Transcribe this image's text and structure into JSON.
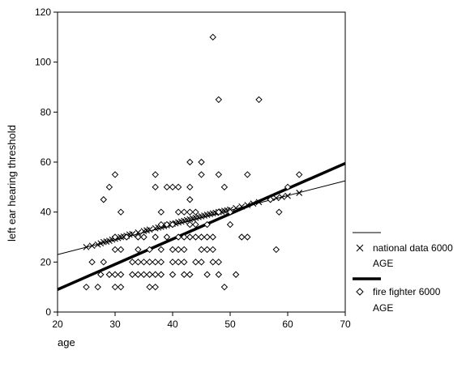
{
  "chart_data": {
    "type": "scatter",
    "xlabel": "age",
    "ylabel": "left ear hearing threshold",
    "xlim": [
      20,
      70
    ],
    "ylim": [
      0,
      120
    ],
    "x_ticks": [
      "20",
      "30",
      "40",
      "50",
      "60",
      "70"
    ],
    "y_ticks": [
      "0",
      "20",
      "40",
      "60",
      "80",
      "100",
      "120"
    ],
    "legend_position": "right",
    "series": [
      {
        "name": "national data 6000 AGE",
        "legend_line1": "national data 6000",
        "legend_line2": "AGE",
        "marker": "x",
        "line_weight": "thin",
        "fit_line": {
          "x1": 20,
          "y1": 23,
          "x2": 70,
          "y2": 52.5
        },
        "points": [
          [
            25,
            26
          ],
          [
            26,
            26.5
          ],
          [
            27,
            27
          ],
          [
            27.5,
            27.5
          ],
          [
            28,
            28
          ],
          [
            28.5,
            28.2
          ],
          [
            29,
            28.5
          ],
          [
            29.5,
            29
          ],
          [
            30,
            29.3
          ],
          [
            30.5,
            29.6
          ],
          [
            31,
            30
          ],
          [
            31.5,
            30.2
          ],
          [
            32,
            30.5
          ],
          [
            32.5,
            31
          ],
          [
            33,
            31.2
          ],
          [
            34,
            31.8
          ],
          [
            35,
            32.4
          ],
          [
            35.5,
            32.7
          ],
          [
            36,
            33
          ],
          [
            37,
            33.5
          ],
          [
            37.5,
            33.8
          ],
          [
            38,
            34.1
          ],
          [
            38.5,
            34.4
          ],
          [
            39,
            34.7
          ],
          [
            39.5,
            35
          ],
          [
            40,
            35.3
          ],
          [
            40.5,
            35.5
          ],
          [
            41,
            35.9
          ],
          [
            41.5,
            36.2
          ],
          [
            42,
            36.5
          ],
          [
            42.5,
            36.8
          ],
          [
            43,
            37.1
          ],
          [
            43.5,
            37.4
          ],
          [
            44,
            37.7
          ],
          [
            44.5,
            38
          ],
          [
            45,
            38.3
          ],
          [
            45.5,
            38.6
          ],
          [
            46,
            38.9
          ],
          [
            46.5,
            39.2
          ],
          [
            47,
            39.5
          ],
          [
            47.5,
            39.7
          ],
          [
            48,
            40
          ],
          [
            48.5,
            40.2
          ],
          [
            49,
            40.5
          ],
          [
            49.5,
            40.7
          ],
          [
            50,
            41
          ],
          [
            51,
            41.6
          ],
          [
            52,
            42.2
          ],
          [
            53,
            42.8
          ],
          [
            54,
            43.4
          ],
          [
            55,
            44
          ],
          [
            58,
            45.6
          ],
          [
            59,
            46
          ],
          [
            60,
            46.5
          ],
          [
            62,
            47.7
          ]
        ]
      },
      {
        "name": "fire fighter 6000 AGE",
        "legend_line1": "fire fighter 6000",
        "legend_line2": "AGE",
        "marker": "diamond",
        "line_weight": "thick",
        "fit_line": {
          "x1": 20,
          "y1": 9,
          "x2": 70,
          "y2": 59.5
        },
        "points": [
          [
            25,
            10
          ],
          [
            26,
            20
          ],
          [
            27,
            10
          ],
          [
            27.5,
            15
          ],
          [
            28,
            45
          ],
          [
            28,
            20
          ],
          [
            29,
            50
          ],
          [
            29,
            15
          ],
          [
            30,
            55
          ],
          [
            30,
            30
          ],
          [
            30,
            25
          ],
          [
            30,
            15
          ],
          [
            30,
            10
          ],
          [
            31,
            40
          ],
          [
            31,
            25
          ],
          [
            31,
            15
          ],
          [
            31,
            10
          ],
          [
            32,
            30
          ],
          [
            33,
            20
          ],
          [
            33,
            15
          ],
          [
            34,
            30
          ],
          [
            34,
            25
          ],
          [
            34,
            20
          ],
          [
            34,
            15
          ],
          [
            35,
            30
          ],
          [
            35,
            20
          ],
          [
            35,
            15
          ],
          [
            36,
            25
          ],
          [
            36,
            20
          ],
          [
            36,
            15
          ],
          [
            36,
            10
          ],
          [
            37,
            55
          ],
          [
            37,
            50
          ],
          [
            37,
            30
          ],
          [
            37,
            20
          ],
          [
            37,
            15
          ],
          [
            37,
            10
          ],
          [
            38,
            40
          ],
          [
            38,
            35
          ],
          [
            38,
            25
          ],
          [
            38,
            20
          ],
          [
            38,
            15
          ],
          [
            39,
            50
          ],
          [
            39,
            35
          ],
          [
            39,
            30
          ],
          [
            40,
            50
          ],
          [
            40,
            35
          ],
          [
            40,
            25
          ],
          [
            40,
            20
          ],
          [
            40,
            15
          ],
          [
            41,
            50
          ],
          [
            41,
            40
          ],
          [
            41,
            30
          ],
          [
            41,
            25
          ],
          [
            41,
            20
          ],
          [
            42,
            40
          ],
          [
            42,
            30
          ],
          [
            42,
            25
          ],
          [
            42,
            20
          ],
          [
            42,
            15
          ],
          [
            43,
            60
          ],
          [
            43,
            50
          ],
          [
            43,
            45
          ],
          [
            43,
            40
          ],
          [
            43,
            35
          ],
          [
            43,
            30
          ],
          [
            43,
            15
          ],
          [
            44,
            40
          ],
          [
            44,
            35
          ],
          [
            44,
            30
          ],
          [
            44,
            20
          ],
          [
            45,
            60
          ],
          [
            45,
            55
          ],
          [
            45,
            30
          ],
          [
            45,
            25
          ],
          [
            45,
            20
          ],
          [
            46,
            35
          ],
          [
            46,
            30
          ],
          [
            46,
            25
          ],
          [
            46,
            15
          ],
          [
            47,
            110
          ],
          [
            47,
            30
          ],
          [
            47,
            25
          ],
          [
            47,
            20
          ],
          [
            48,
            85
          ],
          [
            48,
            55
          ],
          [
            48,
            40
          ],
          [
            48,
            20
          ],
          [
            48,
            15
          ],
          [
            49,
            50
          ],
          [
            49,
            10
          ],
          [
            50,
            40
          ],
          [
            50,
            35
          ],
          [
            51,
            15
          ],
          [
            52,
            30
          ],
          [
            53,
            55
          ],
          [
            53,
            30
          ],
          [
            55,
            85
          ],
          [
            57,
            45
          ],
          [
            58,
            25
          ],
          [
            58.5,
            40
          ],
          [
            60,
            50
          ],
          [
            62,
            55
          ]
        ]
      }
    ]
  }
}
